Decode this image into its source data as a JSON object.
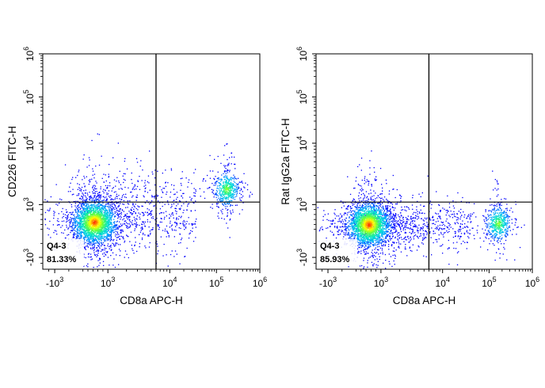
{
  "chart_data": [
    {
      "type": "scatter",
      "subtype": "flow-cytometry-density-dot-plot",
      "xlabel": "CD8a APC-H",
      "ylabel": "CD226 FITC-H",
      "x_scale": "biexponential",
      "y_scale": "biexponential",
      "x_ticks": [
        -1000,
        1000,
        10000,
        100000,
        1000000
      ],
      "y_ticks": [
        -1000,
        1000,
        10000,
        100000,
        1000000
      ],
      "xlim": [
        -3000,
        1000000
      ],
      "ylim": [
        -3000,
        1000000
      ],
      "gate": {
        "type": "quadrant",
        "x": 6000,
        "y": 1100
      },
      "gate_label": {
        "name": "Q4-3",
        "value": "81.33%",
        "quadrant": "bottom-left"
      },
      "populations": [
        {
          "x": 450,
          "y": 300,
          "n": 2600
        },
        {
          "x": 170000,
          "y": 1800,
          "n": 550
        }
      ]
    },
    {
      "type": "scatter",
      "subtype": "flow-cytometry-density-dot-plot",
      "xlabel": "CD8a APC-H",
      "ylabel": "Rat IgG2a FITC-H",
      "x_scale": "biexponential",
      "y_scale": "biexponential",
      "x_ticks": [
        -1000,
        1000,
        10000,
        100000,
        1000000
      ],
      "y_ticks": [
        -1000,
        1000,
        10000,
        100000,
        1000000
      ],
      "xlim": [
        -3000,
        1000000
      ],
      "ylim": [
        -3000,
        1000000
      ],
      "gate": {
        "type": "quadrant",
        "x": 6000,
        "y": 1100
      },
      "gate_label": {
        "name": "Q4-3",
        "value": "85.93%",
        "quadrant": "bottom-left"
      },
      "populations": [
        {
          "x": 500,
          "y": 200,
          "n": 2600
        },
        {
          "x": 160000,
          "y": 250,
          "n": 550
        }
      ]
    }
  ],
  "colors": {
    "density_low": "#0000ff",
    "density_mid": "#00e5e5",
    "density_mid2": "#60ff40",
    "density_high": "#ffff00",
    "density_peak": "#ff2000",
    "frame": "#000000",
    "gate_line": "#000000"
  }
}
